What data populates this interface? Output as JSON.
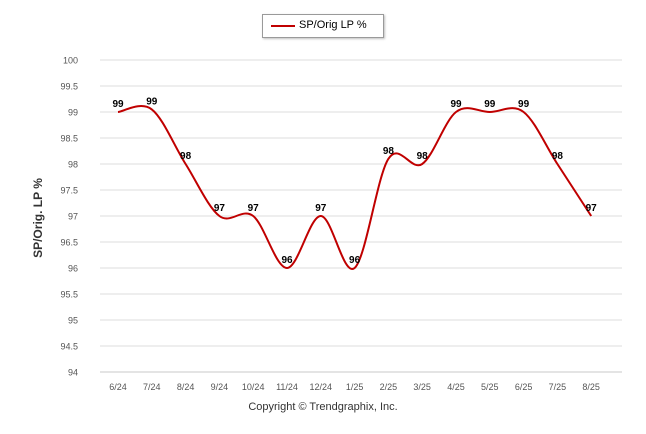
{
  "legend": {
    "label": "SP/Orig LP %"
  },
  "footer": {
    "copyright": "Copyright © Trendgraphix, Inc."
  },
  "colors": {
    "series": "#c00000",
    "grid": "#dcdcdc"
  },
  "chart_data": {
    "type": "line",
    "title": "",
    "xlabel": "",
    "ylabel": "SP/Orig. LP %",
    "ylim": [
      94,
      100
    ],
    "yticks": [
      "94",
      "94.5",
      "95",
      "95.5",
      "96",
      "96.5",
      "97",
      "97.5",
      "98",
      "98.5",
      "99",
      "99.5",
      "100"
    ],
    "grid": true,
    "legend_position": "top-center",
    "categories": [
      "6/24",
      "7/24",
      "8/24",
      "9/24",
      "10/24",
      "11/24",
      "12/24",
      "1/25",
      "2/25",
      "3/25",
      "4/25",
      "5/25",
      "6/25",
      "7/25",
      "8/25"
    ],
    "series": [
      {
        "name": "SP/Orig LP %",
        "values": [
          99,
          99.05,
          98,
          97,
          97,
          96,
          97,
          96,
          98.1,
          98,
          99,
          99,
          99,
          98,
          97
        ],
        "labels": [
          "99",
          "99",
          "98",
          "97",
          "97",
          "96",
          "97",
          "96",
          "98",
          "98",
          "99",
          "99",
          "99",
          "98",
          "97"
        ]
      }
    ]
  }
}
